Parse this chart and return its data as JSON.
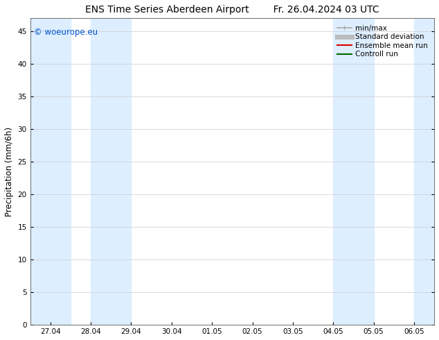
{
  "title_left": "ENS Time Series Aberdeen Airport",
  "title_right": "Fr. 26.04.2024 03 UTC",
  "ylabel": "Precipitation (mm/6h)",
  "watermark": "© woeurope.eu",
  "watermark_color": "#0055cc",
  "xlim_start": -12,
  "xlim_end": 228,
  "ylim": [
    0,
    47
  ],
  "yticks": [
    0,
    5,
    10,
    15,
    20,
    25,
    30,
    35,
    40,
    45
  ],
  "xtick_labels": [
    "27.04",
    "28.04",
    "29.04",
    "30.04",
    "01.05",
    "02.05",
    "03.05",
    "04.05",
    "05.05",
    "06.05"
  ],
  "xtick_positions": [
    0,
    24,
    48,
    72,
    96,
    120,
    144,
    168,
    192,
    216
  ],
  "bg_color": "#ffffff",
  "plot_bg_color": "#ffffff",
  "shaded_bands": [
    {
      "x_start": -12,
      "x_end": 12,
      "color": "#ddeeff"
    },
    {
      "x_start": 24,
      "x_end": 48,
      "color": "#ddeeff"
    },
    {
      "x_start": 168,
      "x_end": 192,
      "color": "#ddeeff"
    },
    {
      "x_start": 216,
      "x_end": 228,
      "color": "#ddeeff"
    }
  ],
  "legend_items": [
    {
      "label": "min/max",
      "color": "#aaaaaa",
      "lw": 1.2,
      "style": "line_with_caps"
    },
    {
      "label": "Standard deviation",
      "color": "#bbbbbb",
      "lw": 5,
      "style": "line"
    },
    {
      "label": "Ensemble mean run",
      "color": "#dd0000",
      "lw": 1.5,
      "style": "line"
    },
    {
      "label": "Controll run",
      "color": "#006600",
      "lw": 1.5,
      "style": "line"
    }
  ],
  "title_fontsize": 10,
  "tick_fontsize": 7.5,
  "ylabel_fontsize": 8.5,
  "legend_fontsize": 7.5
}
